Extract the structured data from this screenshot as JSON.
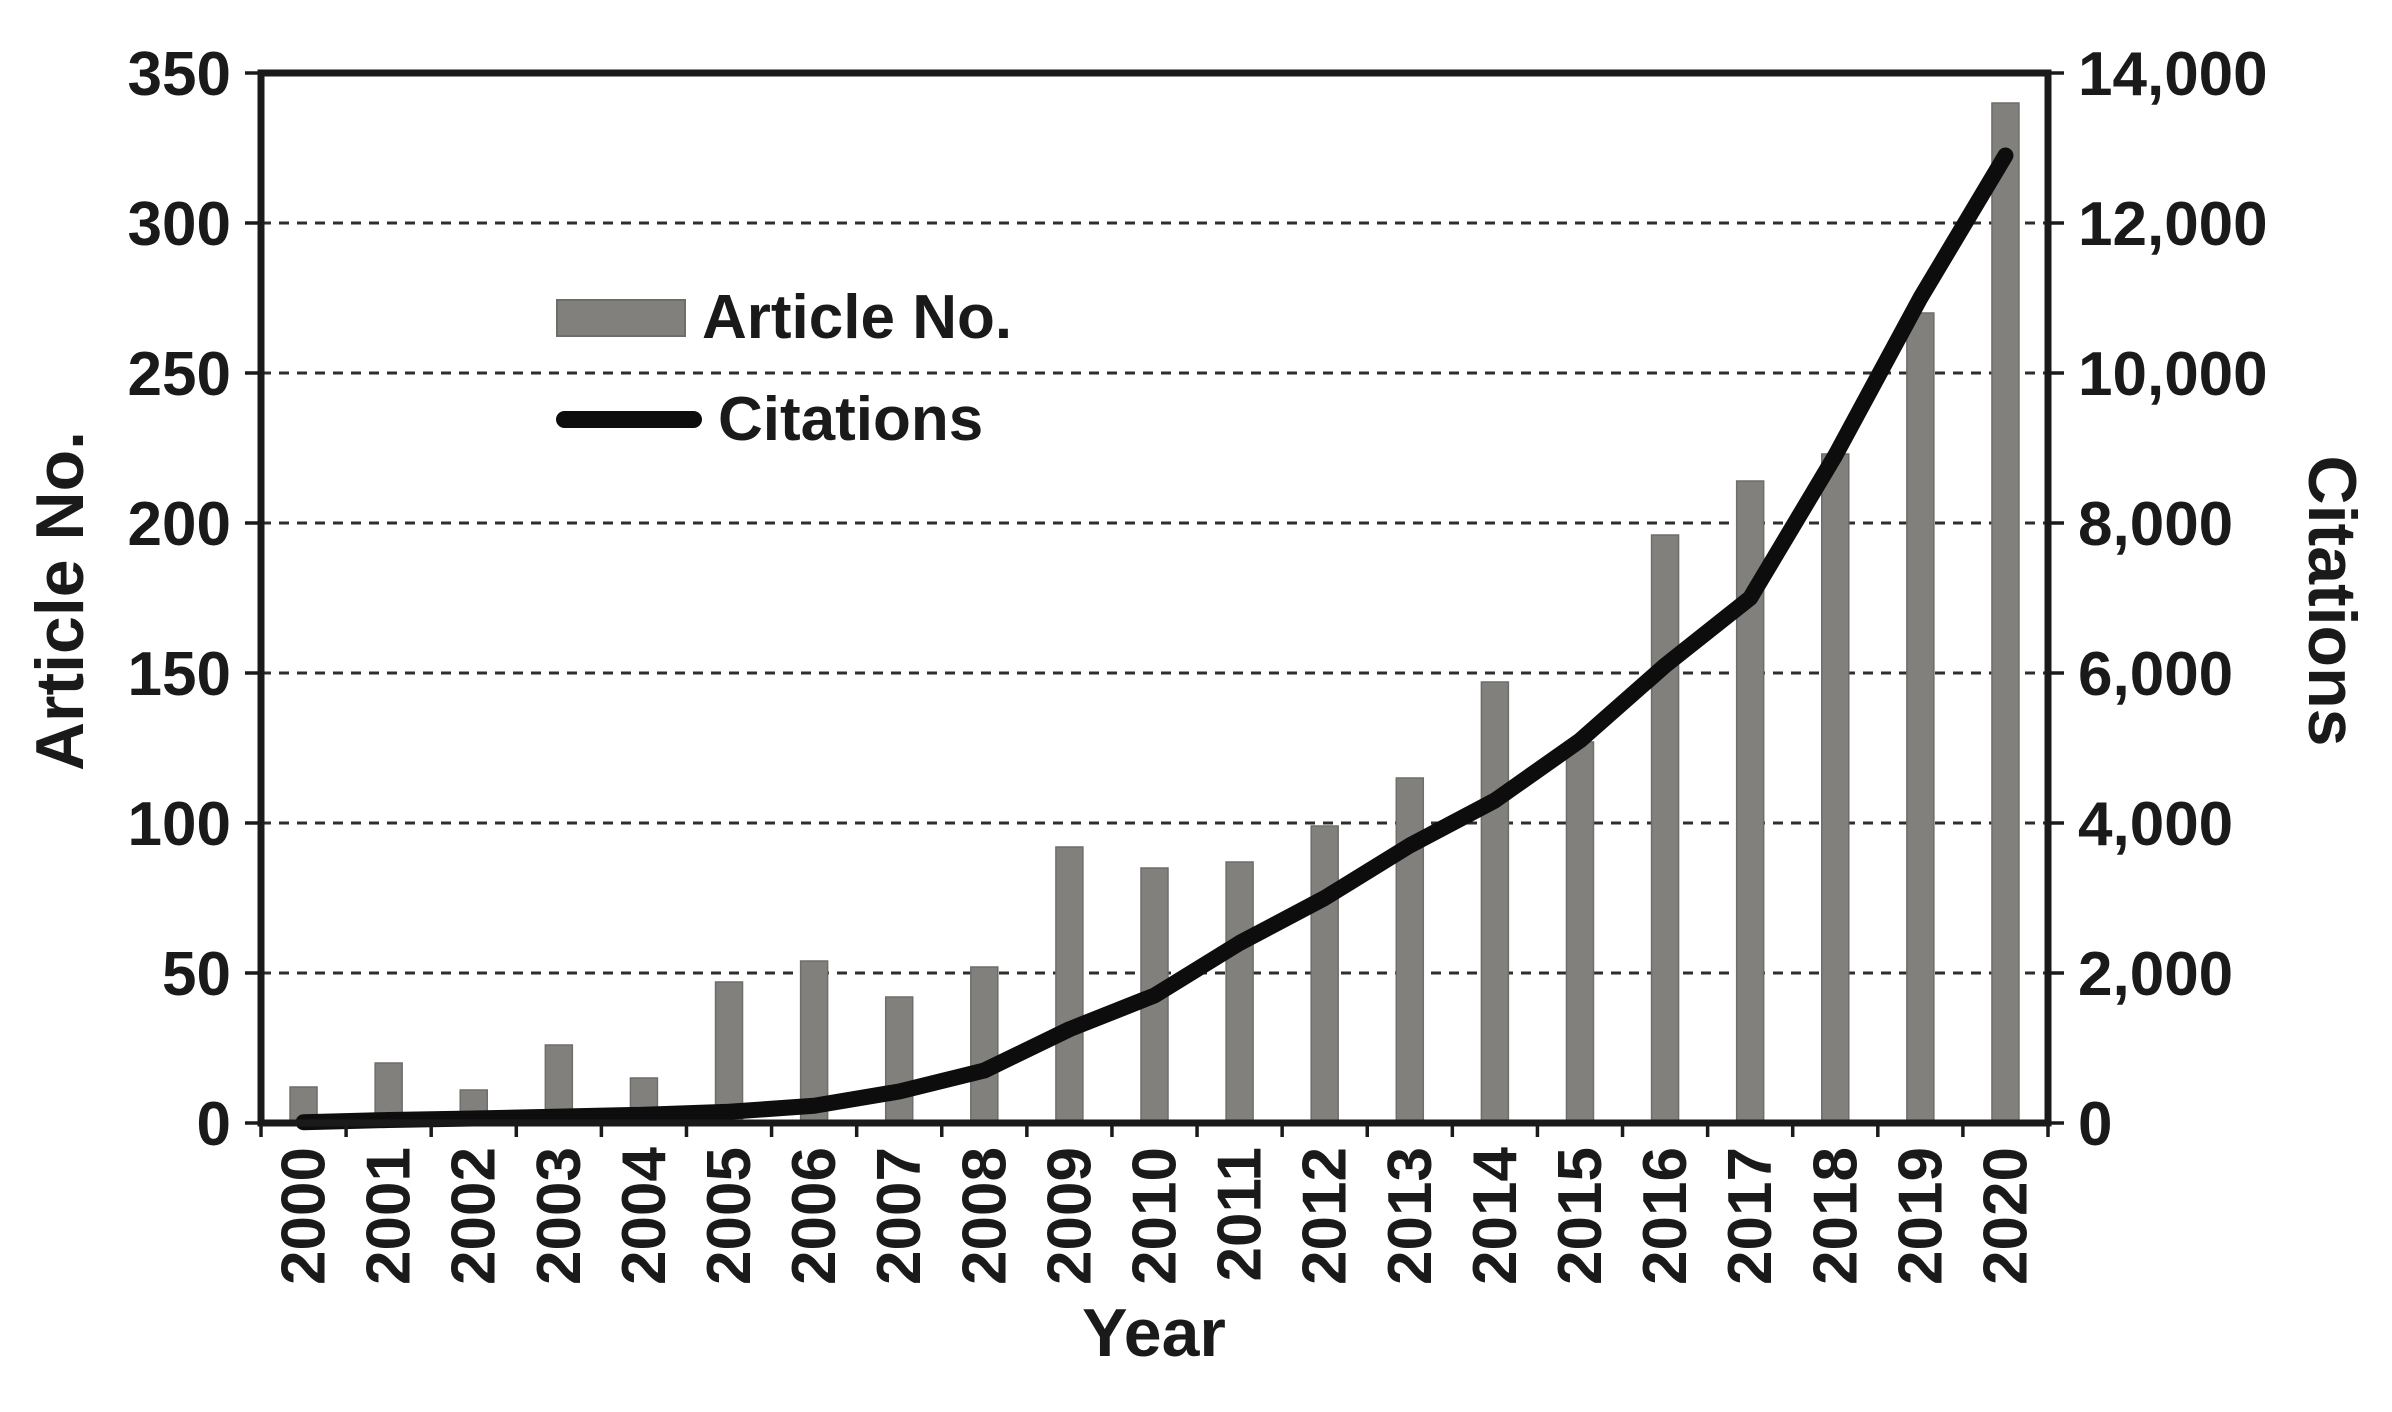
{
  "figure": {
    "description": "Dual-axis combination chart of publication output and citations by year",
    "background": "#ffffff"
  },
  "chart_data": {
    "type": "bar+line combo, dual y-axes",
    "categories": [
      "2000",
      "2001",
      "2002",
      "2003",
      "2004",
      "2005",
      "2006",
      "2007",
      "2008",
      "2009",
      "2010",
      "2011",
      "2012",
      "2013",
      "2014",
      "2015",
      "2016",
      "2017",
      "2018",
      "2019",
      "2020"
    ],
    "series": [
      {
        "name": "Article No.",
        "type": "bar",
        "axis": "left",
        "color": "#82807d",
        "values": [
          12,
          20,
          11,
          26,
          15,
          47,
          54,
          42,
          52,
          92,
          85,
          87,
          99,
          115,
          147,
          127,
          196,
          214,
          223,
          270,
          340
        ]
      },
      {
        "name": "Citations",
        "type": "line",
        "axis": "right",
        "color": "#0d0d0d",
        "values": [
          10,
          40,
          60,
          85,
          110,
          150,
          230,
          420,
          700,
          1250,
          1700,
          2400,
          3000,
          3700,
          4300,
          5100,
          6100,
          7000,
          8900,
          11000,
          12900
        ]
      }
    ],
    "left_axis": {
      "title": "Article No.",
      "min": 0,
      "max": 350,
      "step": 50,
      "tick_labels": [
        "0",
        "50",
        "100",
        "150",
        "200",
        "250",
        "300",
        "350"
      ]
    },
    "right_axis": {
      "title": "Citations",
      "min": 0,
      "max": 14000,
      "step": 2000,
      "tick_labels": [
        "0",
        "2,000",
        "4,000",
        "6,000",
        "8,000",
        "10,000",
        "12,000",
        "14,000"
      ]
    },
    "x_axis": {
      "title": "Year"
    },
    "legend": {
      "position": "inside upper-left",
      "entries": [
        "Article No.",
        "Citations"
      ]
    },
    "grid": "horizontal dashed lines at every left-axis step, full plot frame"
  },
  "style": {
    "bar_color": "#82807d",
    "bar_edge_color": "#6f6d6a",
    "line_color": "#0d0d0d",
    "grid_color": "#2e2e2e",
    "frame_color": "#1a1a1a",
    "text_color": "#1a1a1a",
    "background": "#ffffff"
  }
}
